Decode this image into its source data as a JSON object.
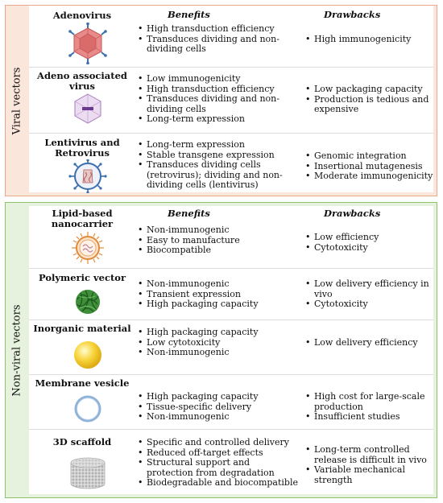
{
  "headers": {
    "benefits": "Benefits",
    "drawbacks": "Drawbacks"
  },
  "viral": {
    "label": "Viral vectors",
    "rows": [
      {
        "name": "Adenovirus",
        "icon": "adenovirus-icon",
        "benefits": [
          "High transduction efficiency",
          "Transduces dividing and non-dividing cells"
        ],
        "drawbacks": [
          "High immunogenicity"
        ]
      },
      {
        "name": "Adeno associated virus",
        "icon": "aav-icon",
        "benefits": [
          "Low immunogenicity",
          "High transduction efficiency",
          "Transduces dividing and non-dividing cells",
          "Long-term expression"
        ],
        "drawbacks": [
          "Low packaging capacity",
          "Production is tedious and expensive"
        ]
      },
      {
        "name": "Lentivirus and Retrovirus",
        "icon": "lentivirus-icon",
        "benefits": [
          "Long-term expression",
          "Stable transgene expression",
          "Transduces dividing cells (retrovirus); dividing and non-dividing cells (lentivirus)"
        ],
        "drawbacks": [
          "Genomic integration",
          "Insertional mutagenesis",
          "Moderate immunogenicity"
        ]
      }
    ]
  },
  "nonviral": {
    "label": "Non-viral vectors",
    "rows": [
      {
        "name": "Lipid-based nanocarrier",
        "icon": "lipid-nanocarrier-icon",
        "benefits": [
          "Non-immunogenic",
          "Easy to manufacture",
          "Biocompatible"
        ],
        "drawbacks": [
          "Low efficiency",
          "Cytotoxicity"
        ]
      },
      {
        "name": "Polymeric vector",
        "icon": "polymeric-vector-icon",
        "benefits": [
          "Non-immunogenic",
          "Transient expression",
          "High packaging capacity"
        ],
        "drawbacks": [
          "Low delivery efficiency in vivo",
          "Cytotoxicity"
        ]
      },
      {
        "name": "Inorganic material",
        "icon": "inorganic-sphere-icon",
        "benefits": [
          "High packaging capacity",
          "Low cytotoxicity",
          "Non-immunogenic"
        ],
        "drawbacks": [
          "Low delivery efficiency"
        ]
      },
      {
        "name": "Membrane vesicle",
        "icon": "membrane-vesicle-icon",
        "benefits": [
          "High packaging capacity",
          "Tissue-specific delivery",
          "Non-immunogenic"
        ],
        "drawbacks": [
          "High cost for large-scale production",
          "Insufficient studies"
        ]
      },
      {
        "name": "3D scaffold",
        "icon": "scaffold-cylinder-icon",
        "benefits": [
          "Specific and controlled delivery",
          "Reduced off-target effects",
          "Structural support and protection from degradation",
          "Biodegradable and biocompatible"
        ],
        "drawbacks": [
          "Long-term controlled release is difficult in vivo",
          "Variable mechanical strength"
        ]
      }
    ]
  },
  "colors": {
    "viral_bg": "#fbe6dc",
    "viral_border": "#e8a98d",
    "nonviral_bg": "#e6f2dd",
    "nonviral_border": "#8cc46e"
  }
}
